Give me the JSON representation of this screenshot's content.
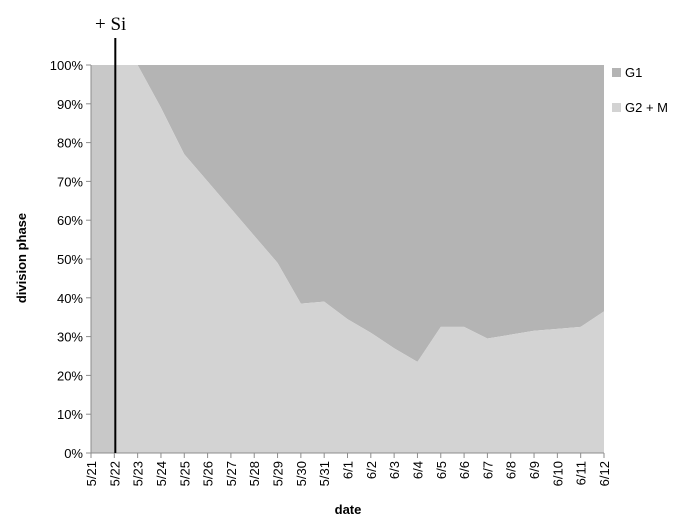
{
  "chart_data": {
    "type": "area",
    "stacked": true,
    "percent": true,
    "categories": [
      "5/21",
      "5/22",
      "5/23",
      "5/24",
      "5/25",
      "5/26",
      "5/27",
      "5/28",
      "5/29",
      "5/30",
      "5/31",
      "6/1",
      "6/2",
      "6/3",
      "6/4",
      "6/5",
      "6/6",
      "6/7",
      "6/8",
      "6/9",
      "6/10",
      "6/11",
      "6/12"
    ],
    "series": [
      {
        "name": "G2 + M",
        "color": "#d3d3d3",
        "values": [
          100,
          100,
          100,
          89,
          77,
          70,
          63,
          56,
          49,
          38.5,
          39,
          34.5,
          31,
          27,
          23.5,
          32.5,
          32.5,
          29.5,
          30.5,
          31.5,
          32,
          32.5,
          36.5
        ]
      },
      {
        "name": "G1",
        "color": "#b4b4b4",
        "values": [
          0,
          0,
          0,
          11,
          23,
          30,
          37,
          44,
          51,
          61.5,
          61,
          65.5,
          69,
          73,
          76.5,
          67.5,
          67.5,
          70.5,
          69.5,
          68.5,
          68,
          67.5,
          63.5
        ]
      }
    ],
    "xlabel": "date",
    "ylabel": "division phase",
    "ylim": [
      0,
      100
    ],
    "yticks": [
      "0%",
      "10%",
      "20%",
      "30%",
      "40%",
      "50%",
      "60%",
      "70%",
      "80%",
      "90%",
      "100%"
    ],
    "legend": "right",
    "grid": false,
    "annotation": {
      "label": "+ Si",
      "at": "5/22"
    },
    "left_band": {
      "from": "5/21",
      "to": "5/22",
      "color": "#c8c8c8"
    }
  }
}
